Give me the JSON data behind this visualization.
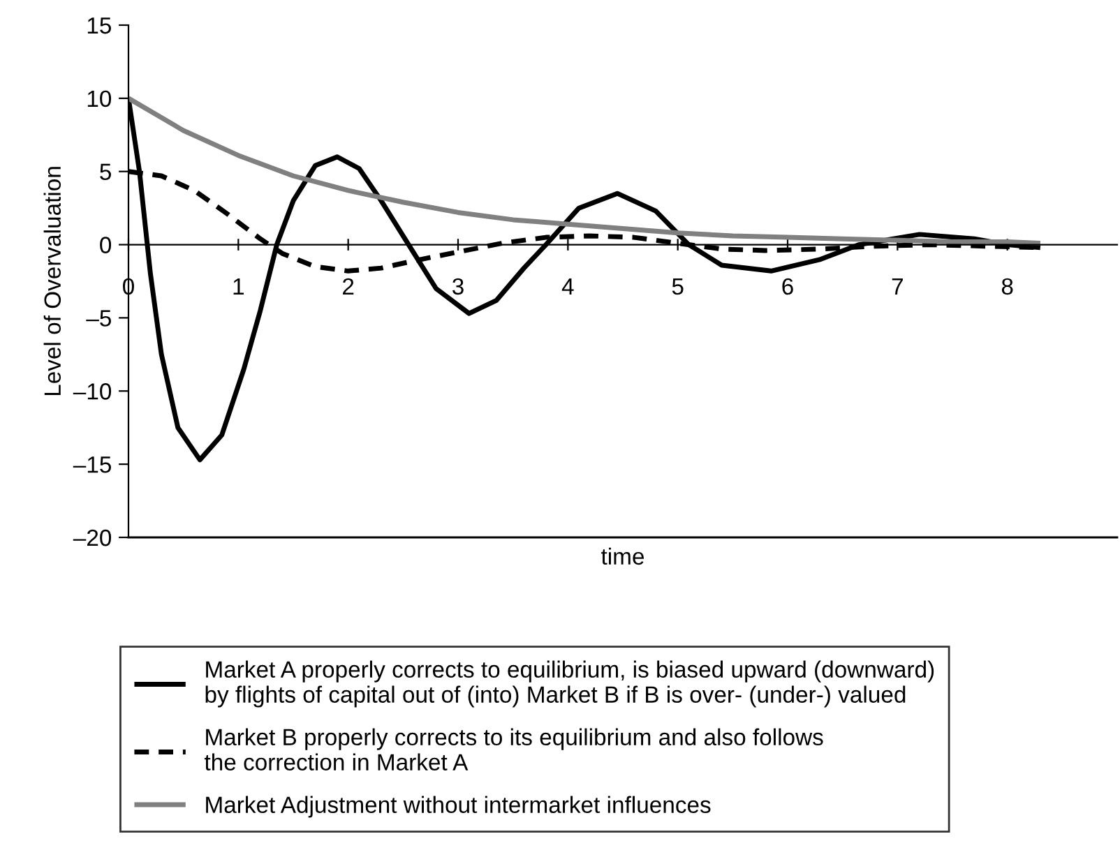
{
  "chart_data": {
    "type": "line",
    "xlabel": "time",
    "ylabel": "Level of Overvaluation",
    "xlim": [
      0,
      9
    ],
    "xticks": [
      0,
      1,
      2,
      3,
      4,
      5,
      6,
      7,
      8
    ],
    "ylim": [
      -20,
      15
    ],
    "yticks": [
      {
        "value": -20,
        "label": "–20"
      },
      {
        "value": -15,
        "label": "–15"
      },
      {
        "value": -10,
        "label": "–10"
      },
      {
        "value": -5,
        "label": "–5"
      },
      0,
      5,
      10,
      15
    ],
    "grid": false,
    "legend": "bottom",
    "marker": "none",
    "series": [
      {
        "name": "Market A properly corrects to equilibrium, is biased upward (downward)\nby flights of capital out of (into) Market B if B is over- (under-) valued",
        "color": "#000000",
        "line_style": "solid",
        "x": [
          0,
          0.1,
          0.2,
          0.3,
          0.45,
          0.65,
          0.85,
          1.05,
          1.2,
          1.35,
          1.5,
          1.7,
          1.9,
          2.1,
          2.3,
          2.55,
          2.8,
          3.1,
          3.35,
          3.6,
          3.8,
          4.1,
          4.45,
          4.8,
          5.1,
          5.4,
          5.85,
          6.3,
          6.65,
          7.2,
          7.7,
          8.0,
          8.3
        ],
        "values": [
          10,
          5,
          -2,
          -7.5,
          -12.5,
          -14.7,
          -13,
          -8.5,
          -4.5,
          0,
          3,
          5.4,
          6,
          5.2,
          3,
          0,
          -3,
          -4.7,
          -3.8,
          -1.6,
          0,
          2.5,
          3.5,
          2.3,
          0,
          -1.4,
          -1.8,
          -1,
          0,
          0.7,
          0.4,
          0,
          -0.2
        ]
      },
      {
        "name": "Market B properly corrects to its equilibrium and also follows\nthe correction in Market A",
        "color": "#000000",
        "line_style": "dashed",
        "x": [
          0,
          0.3,
          0.6,
          0.9,
          1.2,
          1.4,
          1.7,
          2.0,
          2.3,
          2.6,
          3.0,
          3.4,
          3.8,
          4.2,
          4.6,
          5.0,
          5.4,
          5.8,
          6.3,
          6.8,
          7.3,
          8.3
        ],
        "values": [
          5,
          4.7,
          3.7,
          2.1,
          0.4,
          -0.6,
          -1.5,
          -1.8,
          -1.6,
          -1.1,
          -0.5,
          0.1,
          0.5,
          0.6,
          0.5,
          0.1,
          -0.3,
          -0.4,
          -0.3,
          -0.1,
          0,
          -0.2
        ]
      },
      {
        "name": "Market Adjustment without intermarket influences",
        "color": "#808080",
        "line_style": "solid",
        "x": [
          0,
          0.5,
          1,
          1.5,
          2,
          2.5,
          3,
          3.5,
          4,
          4.5,
          5,
          5.5,
          6,
          6.5,
          7,
          7.5,
          8,
          8.3
        ],
        "values": [
          10,
          7.8,
          6.1,
          4.7,
          3.7,
          2.9,
          2.2,
          1.7,
          1.4,
          1.1,
          0.8,
          0.6,
          0.5,
          0.4,
          0.3,
          0.2,
          0.2,
          0.1
        ]
      }
    ]
  }
}
